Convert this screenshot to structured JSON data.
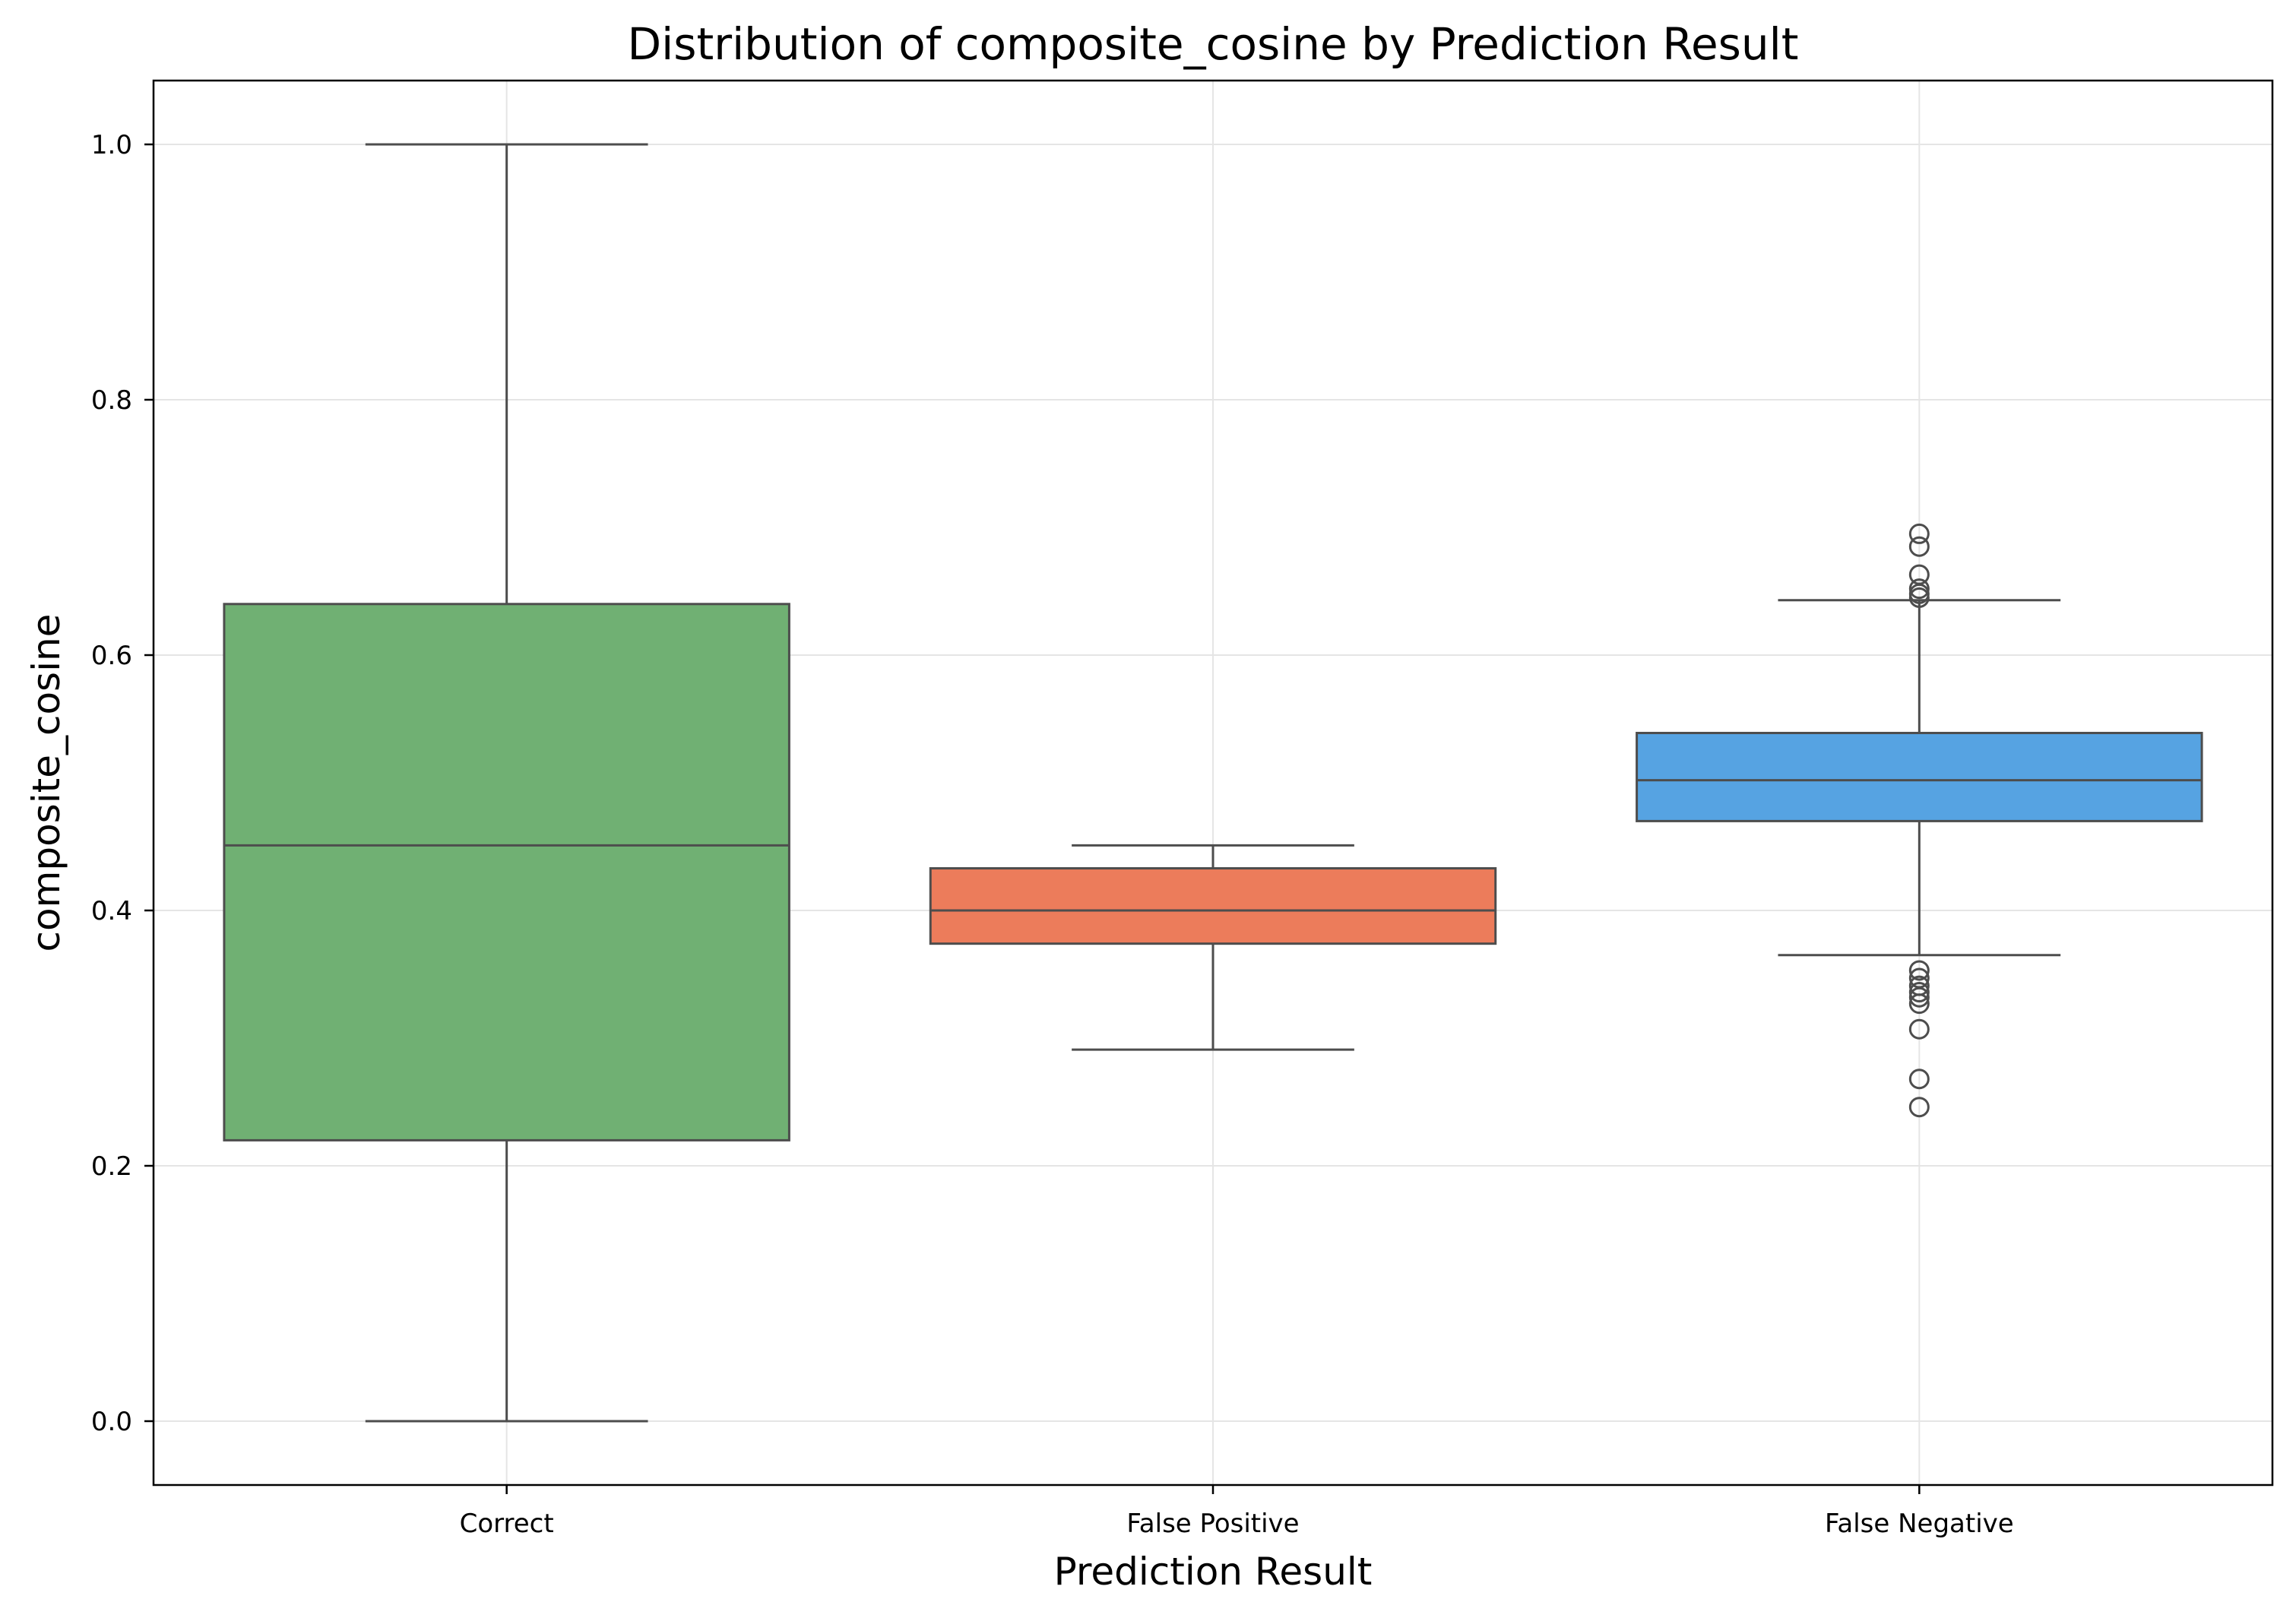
{
  "chart_data": {
    "type": "box",
    "title": "Distribution of composite_cosine by Prediction Result",
    "xlabel": "Prediction Result",
    "ylabel": "composite_cosine",
    "ylim": [
      -0.05,
      1.05
    ],
    "yticks": [
      0.0,
      0.2,
      0.4,
      0.6,
      0.8,
      1.0
    ],
    "ytick_labels": [
      "0.0",
      "0.2",
      "0.4",
      "0.6",
      "0.8",
      "1.0"
    ],
    "grid": true,
    "categories": [
      "Correct",
      "False Positive",
      "False Negative"
    ],
    "boxes": [
      {
        "category": "Correct",
        "color": "#70B073",
        "whisker_low": 0.0,
        "q1": 0.22,
        "median": 0.451,
        "q3": 0.64,
        "whisker_high": 1.0,
        "outliers": []
      },
      {
        "category": "False Positive",
        "color": "#EC7C5B",
        "whisker_low": 0.291,
        "q1": 0.374,
        "median": 0.4,
        "q3": 0.433,
        "whisker_high": 0.451,
        "outliers": []
      },
      {
        "category": "False Negative",
        "color": "#56A3E2",
        "whisker_low": 0.365,
        "q1": 0.47,
        "median": 0.502,
        "q3": 0.539,
        "whisker_high": 0.643,
        "outliers": [
          0.695,
          0.685,
          0.663,
          0.652,
          0.648,
          0.645,
          0.353,
          0.347,
          0.341,
          0.336,
          0.332,
          0.327,
          0.307,
          0.268,
          0.246
        ]
      }
    ],
    "colors": {
      "line": "#4D4D4D",
      "grid": "#E5E5E5",
      "axis": "#000000",
      "text": "#000000"
    }
  }
}
